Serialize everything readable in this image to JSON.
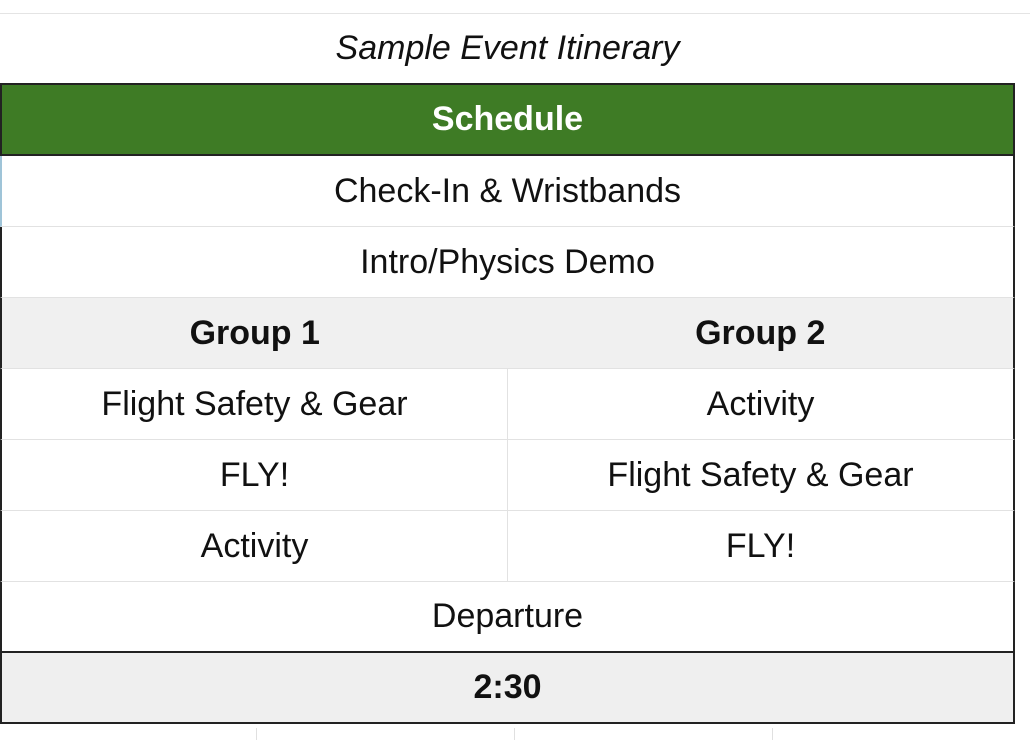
{
  "title": "Sample Event Itinerary",
  "header": "Schedule",
  "rows": {
    "checkin": "Check-In & Wristbands",
    "intro": "Intro/Physics Demo",
    "departure": "Departure",
    "end_time": "2:30"
  },
  "groups": {
    "group1": "Group 1",
    "group2": "Group 2",
    "rotation": [
      {
        "group1": "Flight Safety & Gear",
        "group2": "Activity"
      },
      {
        "group1": "FLY!",
        "group2": "Flight Safety & Gear"
      },
      {
        "group1": "Activity",
        "group2": "FLY!"
      }
    ]
  },
  "colors": {
    "header_bg": "#3e7b25",
    "shaded_bg": "#f0f0f0"
  }
}
